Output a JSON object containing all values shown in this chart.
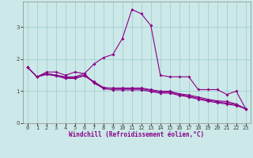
{
  "xlabel": "Windchill (Refroidissement éolien,°C)",
  "xlim": [
    -0.5,
    23.5
  ],
  "ylim": [
    0,
    3.8
  ],
  "yticks": [
    0,
    1,
    2,
    3
  ],
  "xticks": [
    0,
    1,
    2,
    3,
    4,
    5,
    6,
    7,
    8,
    9,
    10,
    11,
    12,
    13,
    14,
    15,
    16,
    17,
    18,
    19,
    20,
    21,
    22,
    23
  ],
  "bg_color": "#cce8e8",
  "line_color": "#880088",
  "grid_color": "#99cccc",
  "lines": [
    [
      1.75,
      1.45,
      1.6,
      1.6,
      1.5,
      1.6,
      1.55,
      1.85,
      2.05,
      2.15,
      2.65,
      3.55,
      3.42,
      3.05,
      1.5,
      1.45,
      1.45,
      1.45,
      1.05,
      1.05,
      1.05,
      0.9,
      1.0,
      0.45
    ],
    [
      1.75,
      1.45,
      1.55,
      1.5,
      1.45,
      1.45,
      1.55,
      1.25,
      1.1,
      1.1,
      1.1,
      1.1,
      1.1,
      1.05,
      1.0,
      1.0,
      0.92,
      0.88,
      0.82,
      0.75,
      0.7,
      0.68,
      0.6,
      0.45
    ],
    [
      1.75,
      1.45,
      1.55,
      1.5,
      1.42,
      1.42,
      1.5,
      1.3,
      1.12,
      1.08,
      1.08,
      1.08,
      1.08,
      1.02,
      0.97,
      0.97,
      0.9,
      0.85,
      0.78,
      0.72,
      0.67,
      0.63,
      0.58,
      0.45
    ],
    [
      1.75,
      1.45,
      1.52,
      1.48,
      1.4,
      1.4,
      1.48,
      1.28,
      1.08,
      1.04,
      1.04,
      1.04,
      1.04,
      0.99,
      0.94,
      0.94,
      0.87,
      0.82,
      0.75,
      0.69,
      0.64,
      0.6,
      0.55,
      0.45
    ]
  ]
}
